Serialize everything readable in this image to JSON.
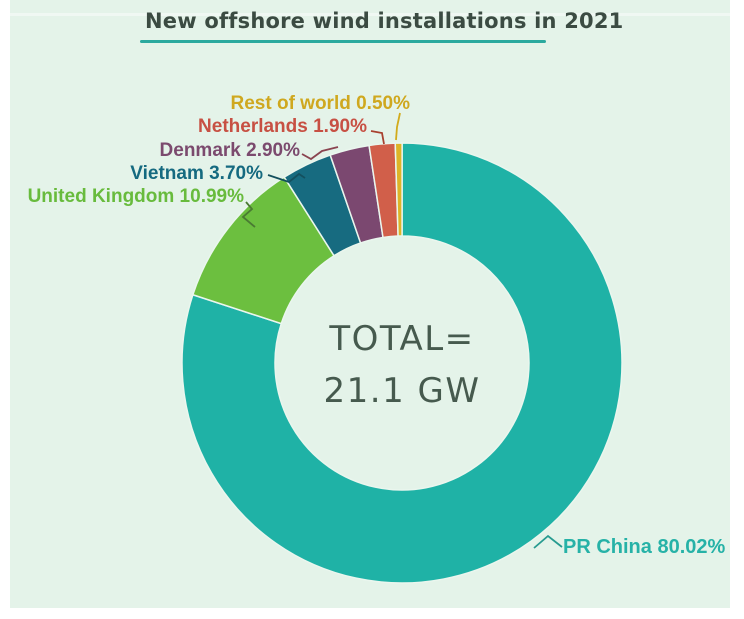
{
  "page": {
    "background": "#ffffff",
    "panel_background": "#e4f3e9",
    "hole_background": "#eaf6ee"
  },
  "header": {
    "title_color": "#3b4b42",
    "underline_color": "#2ba99e"
  },
  "chart_data": {
    "type": "pie",
    "subtype": "donut",
    "title": "New offshore wind installations in 2021",
    "unit": "percent of new installed capacity",
    "total": "21.1 GW",
    "center_label": {
      "line1": "TOTAL=",
      "line2": "21.1 GW",
      "color": "#465a4e"
    },
    "start_angle_deg": 0,
    "direction": "clockwise",
    "labels_layout": "outside with leader lines",
    "slices": [
      {
        "name": "PR China",
        "value": 80.02,
        "label": "PR China 80.02%",
        "color": "#1fb2a6",
        "label_color": "#26b2a7",
        "leader_color": "#279b90"
      },
      {
        "name": "United Kingdom",
        "value": 10.99,
        "label": "United Kingdom 10.99%",
        "color": "#6cbf3f",
        "label_color": "#68bb3d",
        "leader_color": "#4a7a33"
      },
      {
        "name": "Vietnam",
        "value": 3.7,
        "label": "Vietnam 3.70%",
        "color": "#176b80",
        "label_color": "#156a80",
        "leader_color": "#14505e"
      },
      {
        "name": "Denmark",
        "value": 2.9,
        "label": "Denmark 2.90%",
        "color": "#7b4870",
        "label_color": "#7b4a6e",
        "leader_color": "#8a4450"
      },
      {
        "name": "Netherlands",
        "value": 1.9,
        "label": "Netherlands 1.90%",
        "color": "#d15f4a",
        "label_color": "#c75043",
        "leader_color": "#a8402f"
      },
      {
        "name": "Rest of world",
        "value": 0.5,
        "label": "Rest of world 0.50%",
        "color": "#ddb428",
        "label_color": "#cfa81f",
        "leader_color": "#d2ab1c"
      }
    ]
  }
}
